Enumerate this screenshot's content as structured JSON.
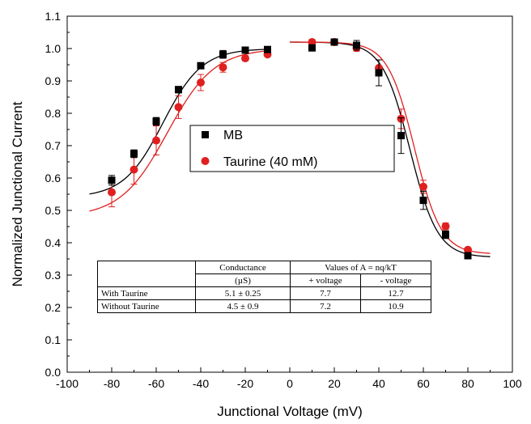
{
  "chart_data": {
    "type": "scatter",
    "xlabel": "Junctional Voltage (mV)",
    "ylabel": "Normalized Junctional Current",
    "xlim": [
      -100,
      100
    ],
    "ylim": [
      0.0,
      1.1
    ],
    "x_ticks": [
      -100,
      -80,
      -60,
      -40,
      -20,
      0,
      20,
      40,
      60,
      80,
      100
    ],
    "y_ticks": [
      0.0,
      0.1,
      0.2,
      0.3,
      0.4,
      0.5,
      0.6,
      0.7,
      0.8,
      0.9,
      1.0,
      1.1
    ],
    "legend_position": "center",
    "series": [
      {
        "name": "MB",
        "marker": "square",
        "color": "#000000",
        "x": [
          -80,
          -70,
          -60,
          -50,
          -40,
          -30,
          -20,
          -10,
          10,
          20,
          30,
          40,
          50,
          60,
          70,
          80
        ],
        "y": [
          0.593,
          0.675,
          0.775,
          0.873,
          0.947,
          0.982,
          0.995,
          0.997,
          1.002,
          1.02,
          1.01,
          0.925,
          0.731,
          0.531,
          0.425,
          0.36
        ],
        "err": [
          0.015,
          0.012,
          0.012,
          0.01,
          0.008,
          0.012,
          0.008,
          0.006,
          0.006,
          0.008,
          0.015,
          0.04,
          0.055,
          0.028,
          0.012,
          0.008
        ]
      },
      {
        "name": "Taurine (40 mM)",
        "marker": "circle",
        "color": "#e02020",
        "x": [
          -80,
          -70,
          -60,
          -50,
          -40,
          -30,
          -20,
          -10,
          10,
          20,
          30,
          40,
          50,
          60,
          70,
          80
        ],
        "y": [
          0.556,
          0.626,
          0.716,
          0.819,
          0.895,
          0.942,
          0.97,
          0.982,
          1.02,
          1.02,
          1.002,
          0.94,
          0.783,
          0.573,
          0.451,
          0.378
        ],
        "err": [
          0.045,
          0.045,
          0.045,
          0.035,
          0.025,
          0.015,
          0.008,
          0.006,
          0.008,
          0.008,
          0.01,
          0.025,
          0.03,
          0.02,
          0.01,
          0.006
        ]
      }
    ],
    "fit_curves": [
      {
        "color": "#000000",
        "negative": {
          "gmin": 0.54,
          "v0": -57,
          "k": 8.8
        },
        "positive": {
          "gmin": 0.355,
          "v0": 54,
          "k": 6.2
        }
      },
      {
        "color": "#e02020",
        "negative": {
          "gmin": 0.48,
          "v0": -55,
          "k": 10.5
        },
        "positive": {
          "gmin": 0.365,
          "v0": 56,
          "k": 6.0
        }
      }
    ]
  },
  "table": {
    "header_row1": [
      "",
      "Conductance",
      "Values of A = nq/kT"
    ],
    "header_row2": [
      "(µS)",
      "+ voltage",
      "- voltage"
    ],
    "rows": [
      [
        "With Taurine",
        "5.1 ± 0.25",
        "7.7",
        "12.7"
      ],
      [
        "Without Taurine",
        "4.5 ± 0.9",
        "7.2",
        "10.9"
      ]
    ]
  }
}
